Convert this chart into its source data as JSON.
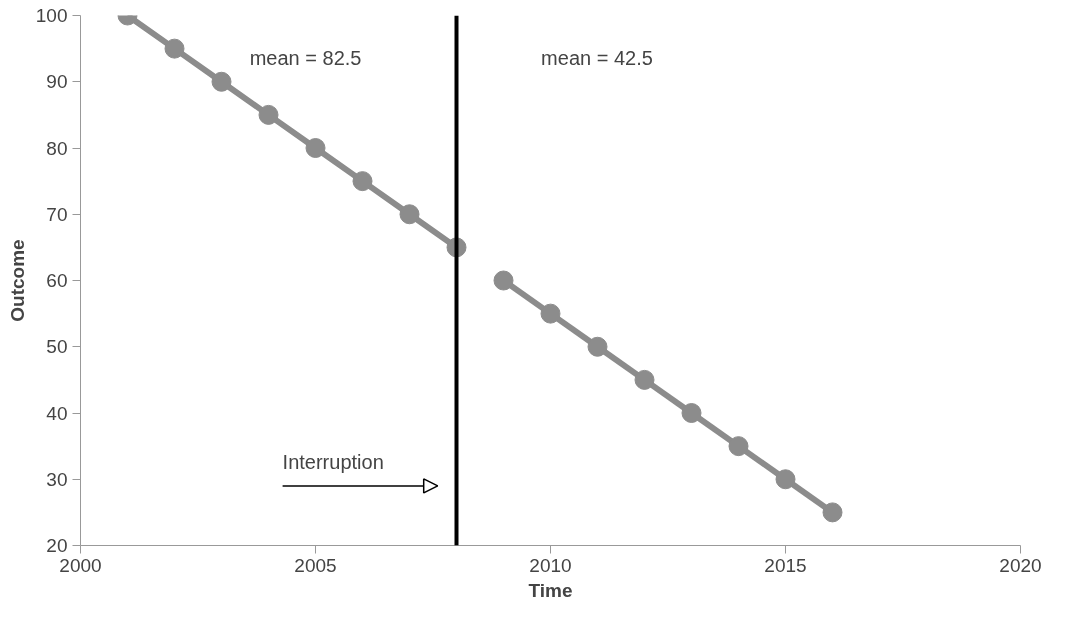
{
  "chart_data": {
    "type": "line",
    "xlabel": "Time",
    "ylabel": "Outcome",
    "series": [
      {
        "color": "#8c8c8c",
        "x": [
          2001,
          2002,
          2003,
          2004,
          2005,
          2006,
          2007,
          2008
        ],
        "values": [
          100,
          95,
          90,
          85,
          80,
          75,
          70,
          65
        ]
      },
      {
        "color": "#8c8c8c",
        "x": [
          2009,
          2010,
          2011,
          2012,
          2013,
          2014,
          2015,
          2016
        ],
        "values": [
          60,
          55,
          50,
          45,
          40,
          35,
          30,
          25
        ]
      }
    ],
    "xlim": [
      2000,
      2020
    ],
    "xticks": [
      2000,
      2005,
      2010,
      2015,
      2020
    ],
    "ylim": [
      20,
      100
    ],
    "yticks": [
      20,
      30,
      40,
      50,
      60,
      70,
      80,
      90,
      100
    ],
    "ref_lines": [
      {
        "axis": "x",
        "value": 2008,
        "color": "#000000"
      }
    ],
    "annotations": [
      "mean = 82.5",
      "mean = 42.5",
      "Interruption"
    ],
    "grid": false,
    "marker": "circle",
    "line_style": "solid"
  }
}
